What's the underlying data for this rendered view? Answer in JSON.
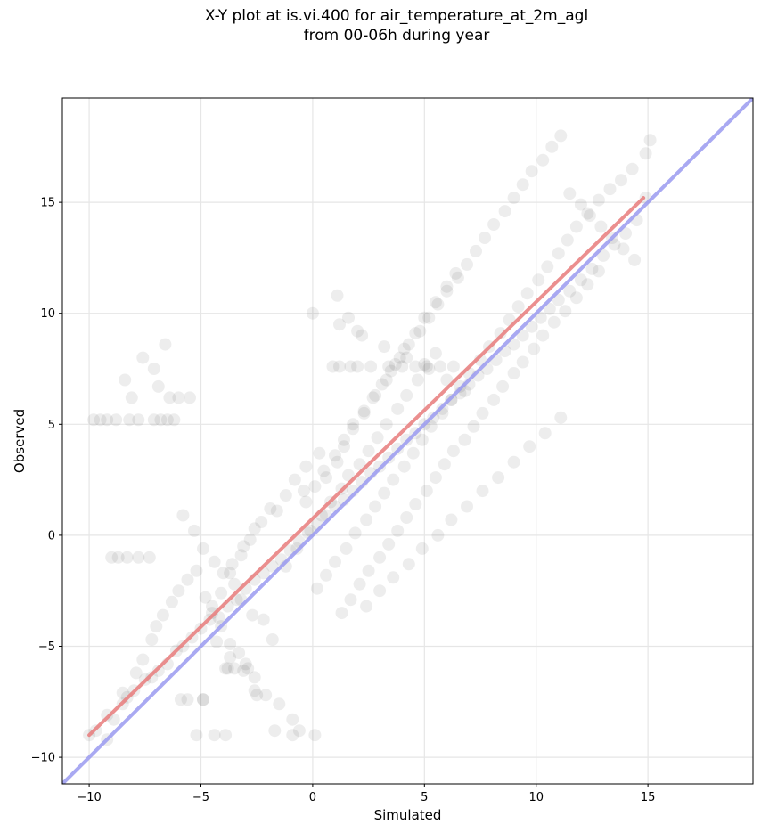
{
  "chart_data": {
    "type": "scatter",
    "title_line1": "X-Y plot at is.vi.400 for air_temperature_at_2m_agl",
    "title_line2": "from 00-06h during year",
    "xlabel": "Simulated",
    "ylabel": "Observed",
    "xlim": [
      -11.2,
      19.7
    ],
    "ylim": [
      -11.2,
      19.7
    ],
    "xticks": [
      -10,
      -5,
      0,
      5,
      10,
      15
    ],
    "yticks": [
      -10,
      -5,
      0,
      5,
      10,
      15
    ],
    "xtick_labels": [
      "−10",
      "−5",
      "0",
      "5",
      "10",
      "15"
    ],
    "ytick_labels": [
      "−10",
      "−5",
      "0",
      "5",
      "10",
      "15"
    ],
    "grid": true,
    "point_color": "#000000",
    "point_alpha": 0.07,
    "series": [
      {
        "values": {
          "x": [
            -10,
            -9.7,
            -9.2,
            -8.5,
            -8.3,
            -8,
            -7.5,
            -7.2,
            -6.9,
            -6.5,
            -6.1,
            -5.8,
            -5.4,
            -5,
            -4.6,
            -4.2,
            -3.8,
            -3.4,
            -3,
            -2.6,
            -2.2,
            -1.8,
            -1.4,
            -1,
            -0.6,
            -0.2,
            0.2,
            0.6,
            1,
            1.4,
            1.8,
            2.2,
            2.6,
            3,
            3.4,
            3.8,
            4.2,
            4.6,
            5,
            5.4,
            5.8,
            6.2,
            6.6,
            7,
            7.4,
            7.8,
            8.2,
            8.6,
            9,
            9.4,
            9.8,
            10.2,
            10.6,
            11,
            11.5,
            12,
            12.5,
            13,
            13.5,
            14,
            14.5,
            14.9,
            -9.8,
            -9.5,
            -9.2,
            -8.8,
            -8.2,
            -7.8,
            -7.1,
            -6.8,
            -6.5,
            -6.2,
            -9,
            -8.7,
            -8.3,
            -7.8,
            -7.3,
            -6.4,
            -6,
            -5.5,
            -5.2,
            -4.4,
            -3.9,
            -7.6,
            -8.4,
            -8.1,
            -7.1,
            -6.9,
            -6.6,
            -5.6,
            -5.9,
            -4.9,
            -4.9,
            -3.8,
            -9.2,
            -8.9,
            -8.5,
            -7.9,
            -7.6,
            -7.2,
            -7.0,
            -6.7,
            -6.3,
            -6.0,
            -5.6,
            -5.2,
            -4.8,
            -4.5,
            -4.1,
            -3.7,
            -3.3,
            -3.0,
            -2.6,
            -4.5,
            -4.1,
            -3.7,
            -3.2,
            -2.8,
            -2.3,
            -1.9,
            -1.2,
            -0.8,
            -0.3,
            0.3,
            -3.9,
            -3.5,
            -2.9,
            -2.5,
            -1.7,
            -0.9,
            -3.6,
            -3.1,
            -2.6,
            -1.6,
            -0.4,
            0.6,
            1.1,
            1.4,
            1.8,
            2.3,
            2.8,
            3.3,
            3.7,
            4.1,
            4.6,
            5.0,
            5.5,
            6.0,
            6.4,
            0.2,
            0.6,
            1.0,
            1.5,
            1.9,
            2.4,
            2.8,
            3.2,
            3.6,
            4.1,
            4.5,
            4.9,
            5.3,
            5.8,
            6.2,
            6.6,
            7.0,
            7.5,
            7.9,
            8.4,
            8.8,
            9.2,
            9.6,
            10.1,
            10.5,
            11.0,
            11.4,
            11.8,
            12.3,
            12.8,
            13.3,
            13.8,
            14.3,
            14.9,
            15.1,
            -0.3,
            0.1,
            0.5,
            1.0,
            1.4,
            1.8,
            2.3,
            2.7,
            3.1,
            3.5,
            3.9,
            4.3,
            4.8,
            5.2,
            5.6,
            6.0,
            6.5,
            6.9,
            7.3,
            7.7,
            8.1,
            8.6,
            9.0,
            9.4,
            9.8,
            10.3,
            10.7,
            11.1,
            11.5,
            12.0,
            12.4,
            12.9,
            13.4,
            13.9,
            14.4,
            1.3,
            1.7,
            2.1,
            2.5,
            3.0,
            3.4,
            3.8,
            4.2,
            4.6,
            5.1,
            5.5,
            5.9,
            6.3,
            6.8,
            7.2,
            7.6,
            8.1,
            8.5,
            9.0,
            9.4,
            9.9,
            10.3,
            10.8,
            11.3,
            11.8,
            12.3,
            12.8,
            2.4,
            3.0,
            3.6,
            4.3,
            4.9,
            5.6,
            6.2,
            6.9,
            7.6,
            8.3,
            9.0,
            9.7,
            10.4,
            11.1,
            -1.2,
            -0.7,
            -0.1,
            0.4,
            0.8,
            1.3,
            1.6,
            2.1,
            2.5,
            2.9,
            3.3,
            3.8,
            4.2,
            4.7,
            5.0,
            5.5,
            0.9,
            1.2,
            1.7,
            2.0,
            2.6,
            3.4,
            4.0,
            4.6,
            5.1,
            5.7,
            6.3,
            0.0,
            1.2,
            2.2,
            3.2,
            4.2,
            5.2,
            6.0,
            6.8,
            1.1,
            1.6,
            2.0,
            0.1,
            -0.6,
            -0.9,
            -1.5,
            -2.1,
            -2.6,
            -3.1,
            -3.7,
            -4.3,
            -1.8,
            -2.2,
            -2.7,
            -3.2,
            -3.5,
            -4.0,
            -4.4,
            -4.9,
            -5.3,
            -5.8
          ],
          "y": [
            -9,
            -8.8,
            -8.1,
            -7.6,
            -7.3,
            -7,
            -6.5,
            -6.4,
            -6.1,
            -5.8,
            -5.2,
            -5,
            -4.6,
            -4.2,
            -3.8,
            -3.7,
            -3.2,
            -2.9,
            -2.4,
            -2,
            -1.7,
            -1.4,
            -1.1,
            -0.7,
            -0.3,
            0.1,
            0.5,
            0.9,
            1.3,
            1.6,
            2,
            2.4,
            2.8,
            3.1,
            3.5,
            3.9,
            4.3,
            4.6,
            5,
            5.3,
            5.7,
            6.1,
            6.4,
            6.8,
            7.2,
            7.5,
            7.9,
            8.3,
            8.6,
            9,
            9.4,
            9.8,
            10.2,
            10.6,
            11,
            11.5,
            12,
            12.6,
            13.1,
            13.6,
            14.2,
            15.2,
            5.2,
            5.2,
            5.2,
            5.2,
            5.2,
            5.2,
            5.2,
            5.2,
            5.2,
            5.2,
            -1,
            -1,
            -1,
            -1,
            -1,
            6.2,
            6.2,
            6.2,
            -9,
            -9,
            -9,
            8,
            7,
            6.2,
            7.5,
            6.7,
            8.6,
            -7.4,
            -7.4,
            -7.4,
            -7.4,
            -6,
            -9.2,
            -8.3,
            -7.1,
            -6.2,
            -5.6,
            -4.7,
            -4.1,
            -3.6,
            -3.0,
            -2.5,
            -2.0,
            -1.6,
            -2.8,
            -3.2,
            -4.1,
            -4.9,
            -5.3,
            -5.8,
            -6.4,
            -3.5,
            -2.6,
            -1.7,
            -0.9,
            -0.2,
            0.6,
            1.2,
            1.8,
            2.5,
            3.1,
            3.7,
            -6,
            -6,
            -6,
            -7.2,
            -8.8,
            -9,
            -1.3,
            -0.5,
            0.3,
            1.1,
            2.0,
            2.6,
            3.3,
            4.0,
            4.8,
            5.5,
            6.3,
            7.0,
            7.7,
            8.4,
            9.1,
            9.8,
            10.5,
            11.2,
            11.8,
            -2.4,
            -1.8,
            -1.2,
            -0.6,
            0.1,
            0.7,
            1.3,
            1.9,
            2.5,
            3.1,
            3.7,
            4.3,
            4.9,
            5.5,
            6.1,
            6.7,
            7.3,
            7.9,
            8.5,
            9.1,
            9.7,
            10.3,
            10.9,
            11.5,
            12.1,
            12.7,
            13.3,
            13.9,
            14.5,
            15.1,
            15.6,
            16.0,
            16.5,
            17.2,
            17.8,
            1.5,
            2.2,
            2.9,
            3.6,
            4.3,
            5.0,
            5.6,
            6.2,
            6.8,
            7.4,
            8.0,
            8.6,
            9.2,
            9.8,
            10.4,
            11.0,
            11.6,
            12.2,
            12.8,
            13.4,
            14.0,
            14.6,
            15.2,
            15.8,
            16.4,
            16.9,
            17.5,
            18.0,
            15.4,
            14.9,
            14.4,
            13.9,
            13.4,
            12.9,
            12.4,
            -3.5,
            -2.9,
            -2.2,
            -1.6,
            -1.0,
            -0.4,
            0.2,
            0.8,
            1.4,
            2.0,
            2.6,
            3.2,
            3.8,
            4.3,
            4.9,
            5.5,
            6.1,
            6.7,
            7.3,
            7.8,
            8.4,
            9.0,
            9.6,
            10.1,
            10.7,
            11.3,
            11.9,
            -3.2,
            -2.5,
            -1.9,
            -1.3,
            -0.6,
            0.0,
            0.7,
            1.3,
            2.0,
            2.6,
            3.3,
            4.0,
            4.6,
            5.3,
            -1.4,
            -0.6,
            0.2,
            0.9,
            1.5,
            2.1,
            2.7,
            3.2,
            3.8,
            4.4,
            5.0,
            5.7,
            6.3,
            7.0,
            7.7,
            8.2,
            7.6,
            7.6,
            7.6,
            7.6,
            7.6,
            7.6,
            7.6,
            7.6,
            7.6,
            7.6,
            7.6,
            10.0,
            9.5,
            9.0,
            8.5,
            8.0,
            7.5,
            7.0,
            6.5,
            10.8,
            9.8,
            9.2,
            -9,
            -8.8,
            -8.3,
            -7.6,
            -7.2,
            -7.0,
            -6.1,
            -5.5,
            -4.8,
            -4.7,
            -3.8,
            -3.6,
            -2.9,
            -2.2,
            -1.7,
            -1.2,
            -0.6,
            0.2,
            0.9
          ]
        }
      },
      {
        "name": "",
        "values": {
          "x": [
            -10,
            14.8
          ],
          "y": [
            -9.0,
            15.2
          ]
        },
        "color": "#e77b7b"
      },
      {
        "name": "",
        "values": {
          "x": [
            -11.2,
            19.7
          ],
          "y": [
            -11.2,
            19.7
          ]
        },
        "color": "#9a9af0"
      }
    ]
  }
}
